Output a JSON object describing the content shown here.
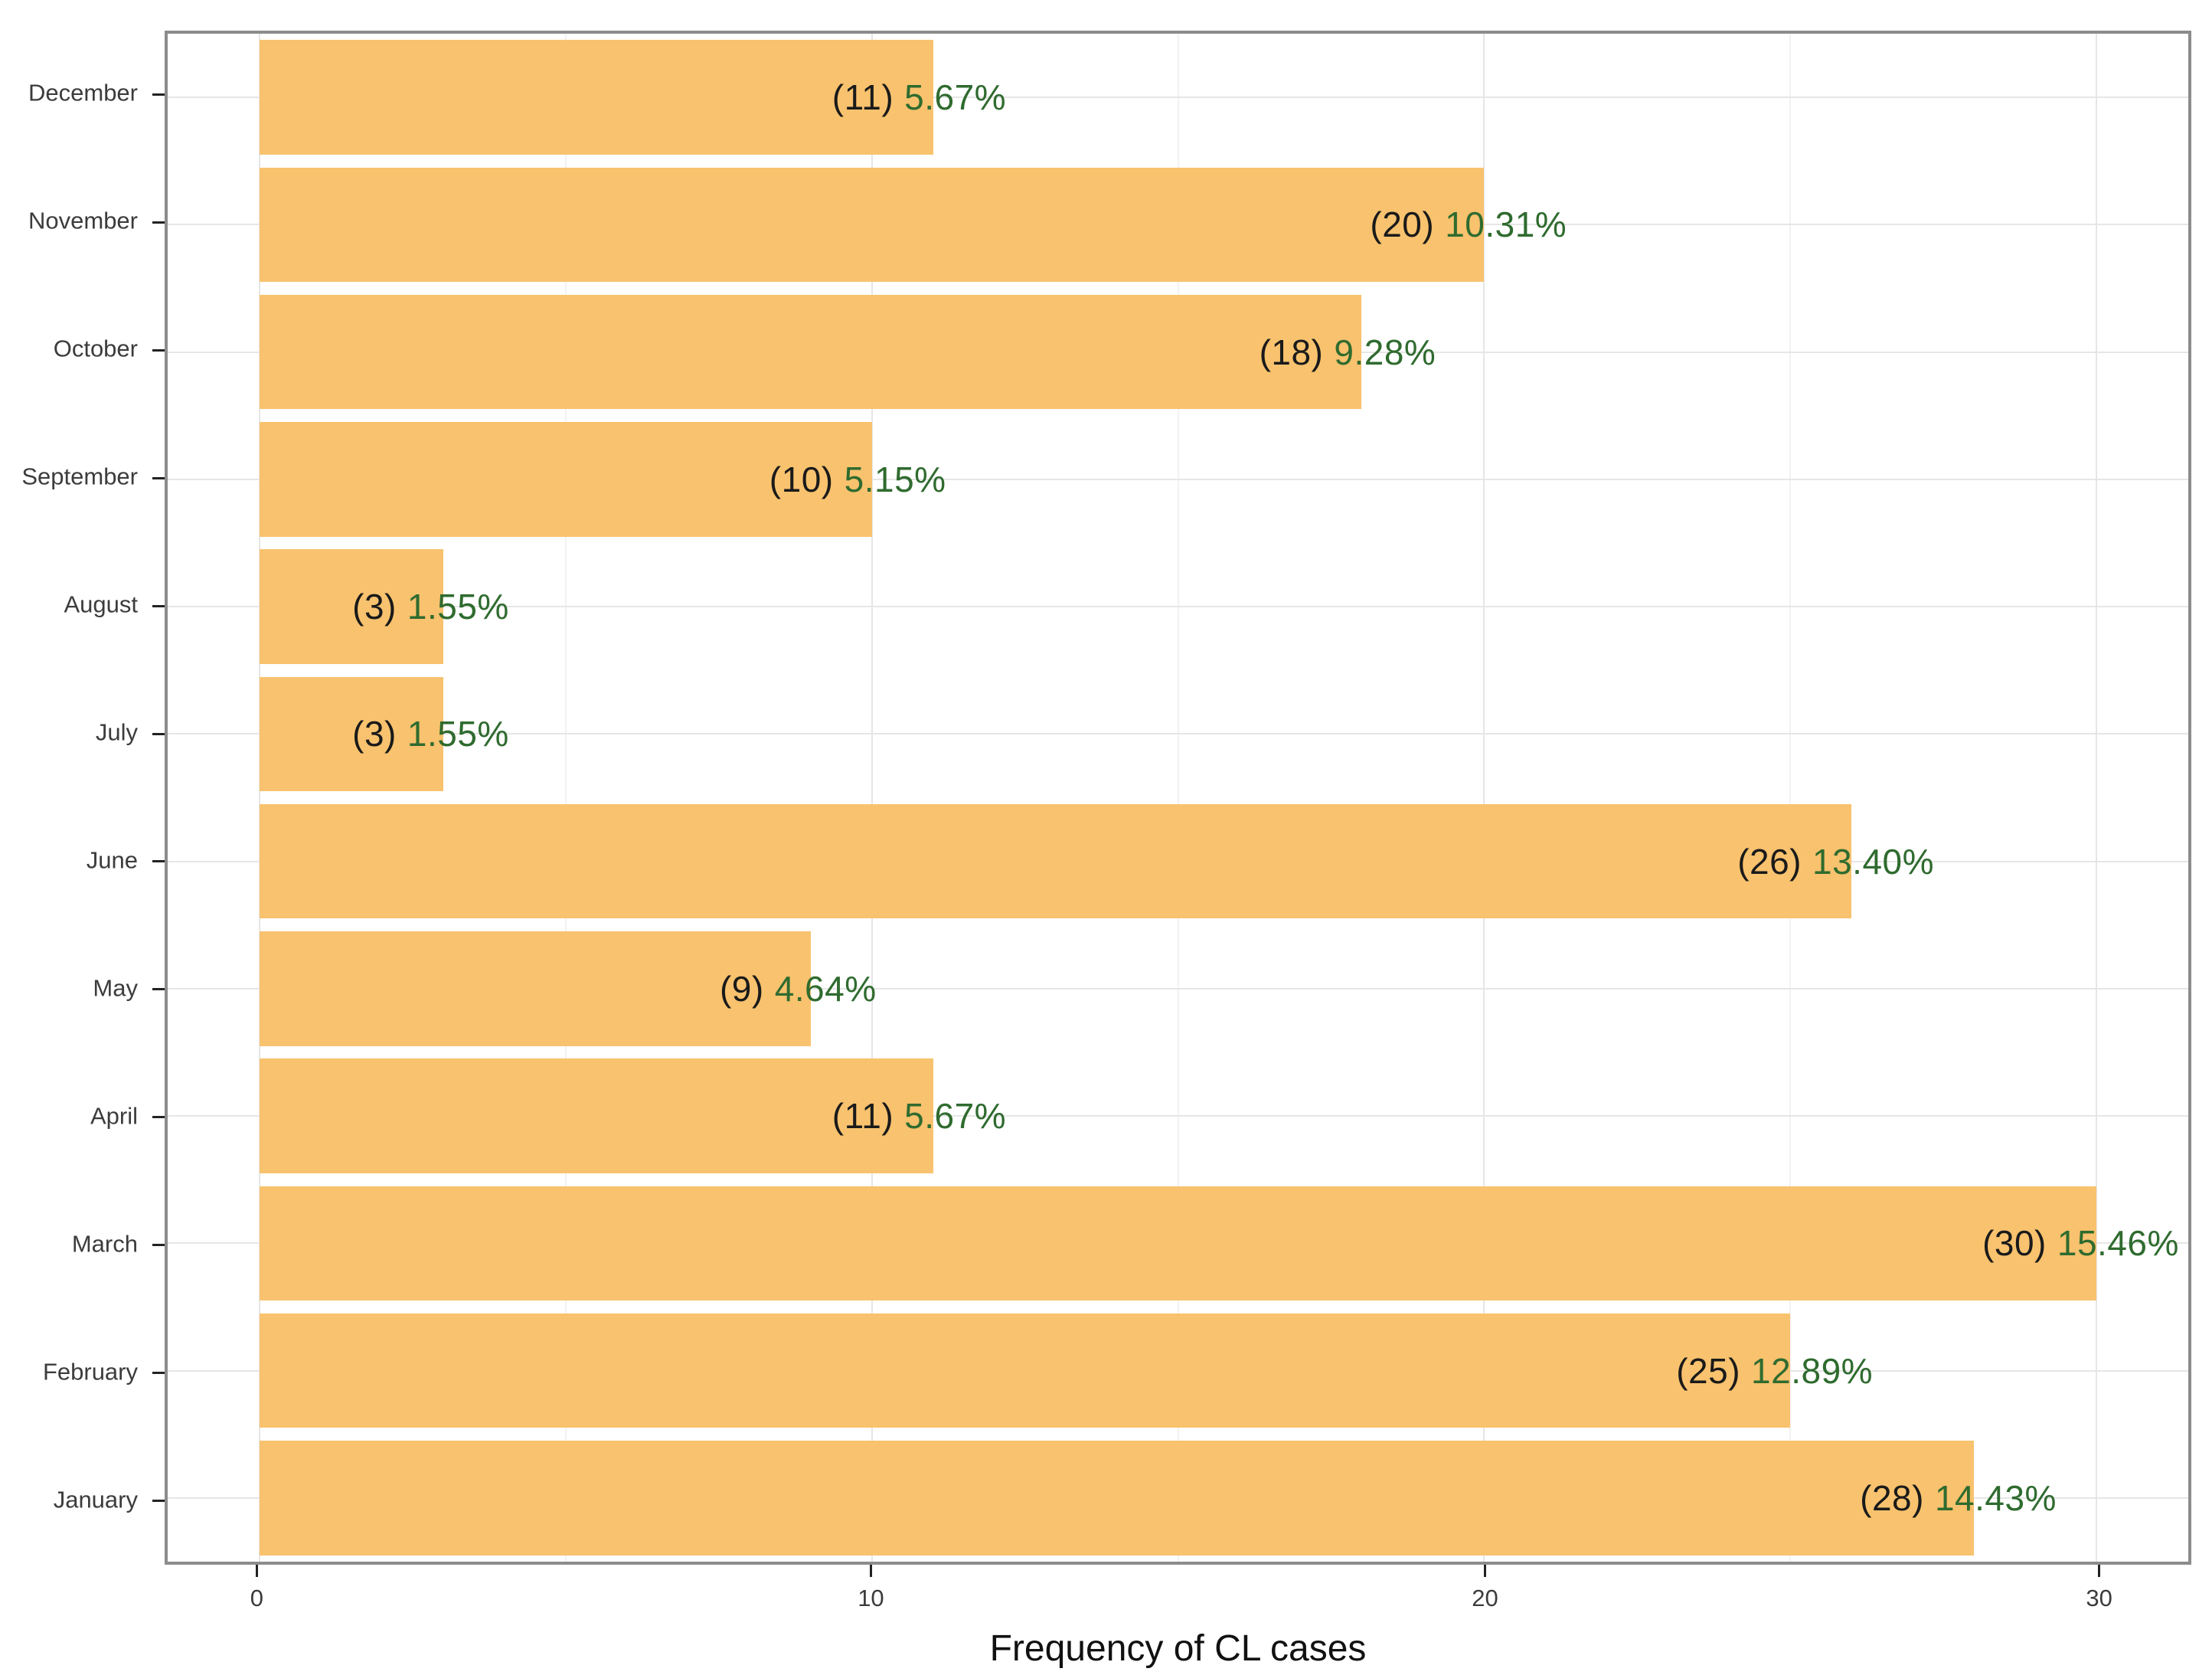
{
  "chart_data": {
    "type": "bar",
    "orientation": "horizontal",
    "title": "",
    "xlabel": "Frequency of CL cases",
    "ylabel": "",
    "xlim": [
      -1.5,
      31.5
    ],
    "grid": "major-and-minor",
    "legend": "none",
    "x_ticks": [
      {
        "value": 0,
        "label": "0"
      },
      {
        "value": 10,
        "label": "10"
      },
      {
        "value": 20,
        "label": "20"
      },
      {
        "value": 30,
        "label": "30"
      }
    ],
    "bars_top_to_bottom": [
      {
        "month": "December",
        "count": 11,
        "count_label": "(11)",
        "pct_label": "5.67%"
      },
      {
        "month": "November",
        "count": 20,
        "count_label": "(20)",
        "pct_label": "10.31%"
      },
      {
        "month": "October",
        "count": 18,
        "count_label": "(18)",
        "pct_label": "9.28%"
      },
      {
        "month": "September",
        "count": 10,
        "count_label": "(10)",
        "pct_label": "5.15%"
      },
      {
        "month": "August",
        "count": 3,
        "count_label": "(3)",
        "pct_label": "1.55%"
      },
      {
        "month": "July",
        "count": 3,
        "count_label": "(3)",
        "pct_label": "1.55%"
      },
      {
        "month": "June",
        "count": 26,
        "count_label": "(26)",
        "pct_label": "13.40%"
      },
      {
        "month": "May",
        "count": 9,
        "count_label": "(9)",
        "pct_label": "4.64%"
      },
      {
        "month": "April",
        "count": 11,
        "count_label": "(11)",
        "pct_label": "5.67%"
      },
      {
        "month": "March",
        "count": 30,
        "count_label": "(30)",
        "pct_label": "15.46%"
      },
      {
        "month": "February",
        "count": 25,
        "count_label": "(25)",
        "pct_label": "12.89%"
      },
      {
        "month": "January",
        "count": 28,
        "count_label": "(28)",
        "pct_label": "14.43%"
      }
    ]
  },
  "colors": {
    "bar_fill": "#F8C26E",
    "count_text": "#1A1A1A",
    "pct_text": "#2F6B2F",
    "axis_text": "#3C3C3C",
    "axis_title_text": "#111111",
    "panel_border": "#8C8C8C",
    "tick_mark": "#222222",
    "grid_major": "#E6E6E6",
    "grid_minor": "#F2F2F2",
    "background": "#FFFFFF"
  }
}
